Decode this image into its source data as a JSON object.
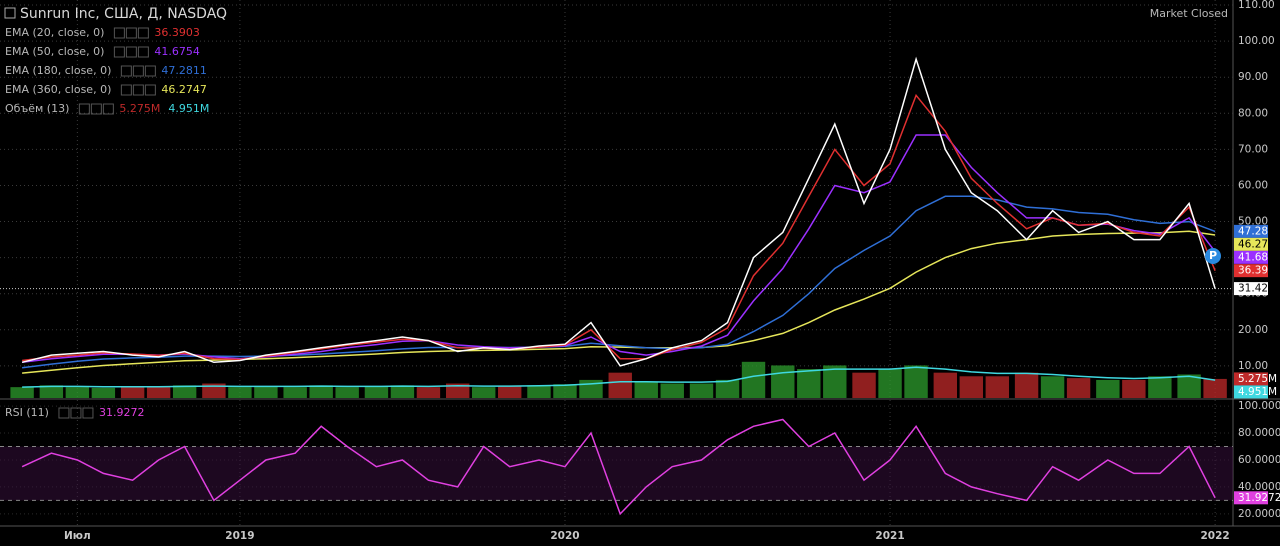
{
  "chart_data": [
    {
      "type": "line",
      "title": "Sunrun Inc, США, Д, NASDAQ",
      "status": "Market Closed",
      "event_marker": "P",
      "x": [
        2018.33,
        2018.42,
        2018.5,
        2018.58,
        2018.67,
        2018.75,
        2018.83,
        2018.92,
        2019.0,
        2019.08,
        2019.17,
        2019.25,
        2019.33,
        2019.42,
        2019.5,
        2019.58,
        2019.67,
        2019.75,
        2019.83,
        2019.92,
        2020.0,
        2020.08,
        2020.17,
        2020.25,
        2020.33,
        2020.42,
        2020.5,
        2020.58,
        2020.67,
        2020.75,
        2020.83,
        2020.92,
        2021.0,
        2021.08,
        2021.17,
        2021.25,
        2021.33,
        2021.42,
        2021.5,
        2021.58,
        2021.67,
        2021.75,
        2021.83,
        2021.92,
        2022.0
      ],
      "xlim": [
        2018.262,
        2022.055
      ],
      "xticks": [
        {
          "value": 2018.5,
          "label": "Июл"
        },
        2019,
        2020,
        2021,
        2022
      ],
      "ylim": [
        1.1,
        111.4
      ],
      "yticks": [
        {
          "value": 10,
          "label": "10.00"
        },
        {
          "value": 20,
          "label": "20.00"
        },
        {
          "value": 30,
          "label": "30.00"
        },
        {
          "value": 40,
          "label": "40.00"
        },
        {
          "value": 50,
          "label": "50.00"
        },
        {
          "value": 60,
          "label": "60.00"
        },
        {
          "value": 70,
          "label": "70.00"
        },
        {
          "value": 80,
          "label": "80.00"
        },
        {
          "value": 90,
          "label": "90.00"
        },
        {
          "value": 100,
          "label": "100.00"
        },
        {
          "value": 110,
          "label": "110.00"
        }
      ],
      "grid": true,
      "series": [
        {
          "color": "#ffffff",
          "values": [
            11,
            13,
            13.5,
            14,
            13,
            12.5,
            14,
            11,
            11.5,
            13,
            14,
            15,
            16,
            17,
            18,
            17,
            14,
            15,
            14.5,
            15.5,
            16,
            22,
            10,
            12,
            15,
            17,
            22,
            40,
            47,
            62,
            77,
            55,
            70,
            95,
            70,
            58,
            53,
            45,
            53,
            47,
            50,
            45,
            45,
            55,
            31.42
          ]
        },
        {
          "name": "EMA (20, close, 0)",
          "color": "#e03030",
          "last_label": "36.39",
          "values": [
            11.5,
            12.5,
            13,
            13.6,
            13.3,
            12.9,
            13.5,
            12,
            11.8,
            12.7,
            13.7,
            14.7,
            15.7,
            16.6,
            17.4,
            17,
            15,
            14.9,
            14.6,
            15.2,
            15.8,
            20,
            12,
            12,
            14.5,
            16.5,
            20.5,
            35,
            44,
            57,
            70,
            60,
            66,
            85,
            75,
            62,
            55,
            48,
            51,
            49,
            49.5,
            47,
            46,
            54,
            36.3903
          ]
        },
        {
          "name": "EMA (50, close, 0)",
          "color": "#9b30ff",
          "last_label": "41.68",
          "values": [
            11,
            12,
            12.6,
            13.2,
            13.2,
            13,
            13.3,
            12.5,
            12,
            12.5,
            13.2,
            14,
            15,
            15.9,
            16.8,
            17,
            15.8,
            15.3,
            15,
            15.2,
            15.6,
            18,
            14,
            13,
            14,
            15.5,
            18.5,
            28,
            37,
            48,
            60,
            58,
            61,
            74,
            74,
            65,
            58,
            51,
            51,
            49,
            49.3,
            47.5,
            46.5,
            51,
            41.6754
          ]
        },
        {
          "name": "EMA (180, close, 0)",
          "color": "#2f6fd6",
          "last_label": "47.28",
          "values": [
            9.5,
            10.5,
            11.3,
            11.9,
            12.2,
            12.4,
            12.7,
            12.7,
            12.6,
            12.7,
            13,
            13.3,
            13.7,
            14.2,
            14.7,
            15.1,
            15.1,
            15.1,
            15.1,
            15.2,
            15.4,
            16.3,
            15.6,
            15,
            14.8,
            15,
            16,
            19.5,
            24,
            30,
            37,
            42,
            46,
            53,
            57,
            57,
            56,
            54,
            53.5,
            52.5,
            52,
            50.5,
            49.5,
            50,
            47.2811
          ]
        },
        {
          "name": "EMA (360, close, 0)",
          "color": "#e6e65a",
          "last_label": "46.27",
          "values": [
            8,
            8.8,
            9.5,
            10.1,
            10.6,
            11,
            11.4,
            11.6,
            11.8,
            12,
            12.3,
            12.6,
            12.9,
            13.3,
            13.7,
            14,
            14.2,
            14.3,
            14.4,
            14.6,
            14.8,
            15.3,
            15.2,
            15,
            15,
            15.1,
            15.6,
            17,
            19,
            22,
            25.5,
            28.5,
            31.5,
            36,
            40,
            42.5,
            44,
            45,
            46,
            46.4,
            46.7,
            46.8,
            46.9,
            47.3,
            46.2747
          ]
        }
      ]
    },
    {
      "type": "bar",
      "title": "Объём (13)",
      "ylim": [
        0,
        110
      ],
      "up_color": "#2e9e2e",
      "down_color": "#c02a2a",
      "series": [
        {
          "last_label": "5.275M",
          "values": [
            3,
            3.5,
            3,
            2.8,
            3,
            3.2,
            3.5,
            4,
            3,
            3.2,
            3,
            3.5,
            3,
            3.2,
            3.5,
            3,
            4,
            3,
            3.2,
            3.5,
            3.8,
            5,
            7,
            4.5,
            4,
            4,
            5,
            10,
            9,
            8,
            9,
            7,
            8,
            9,
            7,
            6,
            6,
            7,
            6,
            5.5,
            5,
            5,
            6,
            6.5,
            5.275
          ]
        },
        {
          "color": "#3fd8e0",
          "last_label": "4.951M",
          "values": [
            3,
            3.2,
            3.2,
            3.1,
            3.1,
            3.1,
            3.2,
            3.3,
            3.2,
            3.2,
            3.2,
            3.3,
            3.2,
            3.2,
            3.3,
            3.2,
            3.4,
            3.3,
            3.3,
            3.4,
            3.5,
            3.9,
            4.5,
            4.5,
            4.4,
            4.4,
            4.6,
            6,
            7,
            7.5,
            8,
            8,
            8,
            8.5,
            8,
            7.2,
            6.8,
            6.8,
            6.5,
            6,
            5.6,
            5.4,
            5.6,
            6,
            4.951
          ]
        }
      ]
    },
    {
      "type": "line",
      "title": "RSI (11)",
      "ylim": [
        11,
        104.5
      ],
      "yticks": [
        {
          "value": 20,
          "label": "20.0000"
        },
        {
          "value": 40,
          "label": "40.0000"
        },
        {
          "value": 60,
          "label": "60.0000"
        },
        {
          "value": 80,
          "label": "80.0000"
        },
        {
          "value": 100,
          "label": "100.0000"
        }
      ],
      "levels": [
        70,
        30
      ],
      "series": [
        {
          "color": "#e040e0",
          "values": [
            55,
            65,
            60,
            50,
            45,
            60,
            70,
            30,
            45,
            60,
            65,
            85,
            70,
            55,
            60,
            45,
            40,
            70,
            55,
            60,
            55,
            80,
            20,
            40,
            55,
            60,
            75,
            85,
            90,
            70,
            80,
            45,
            60,
            85,
            50,
            40,
            35,
            30,
            55,
            45,
            60,
            50,
            50,
            70,
            31.9272
          ]
        }
      ]
    }
  ]
}
